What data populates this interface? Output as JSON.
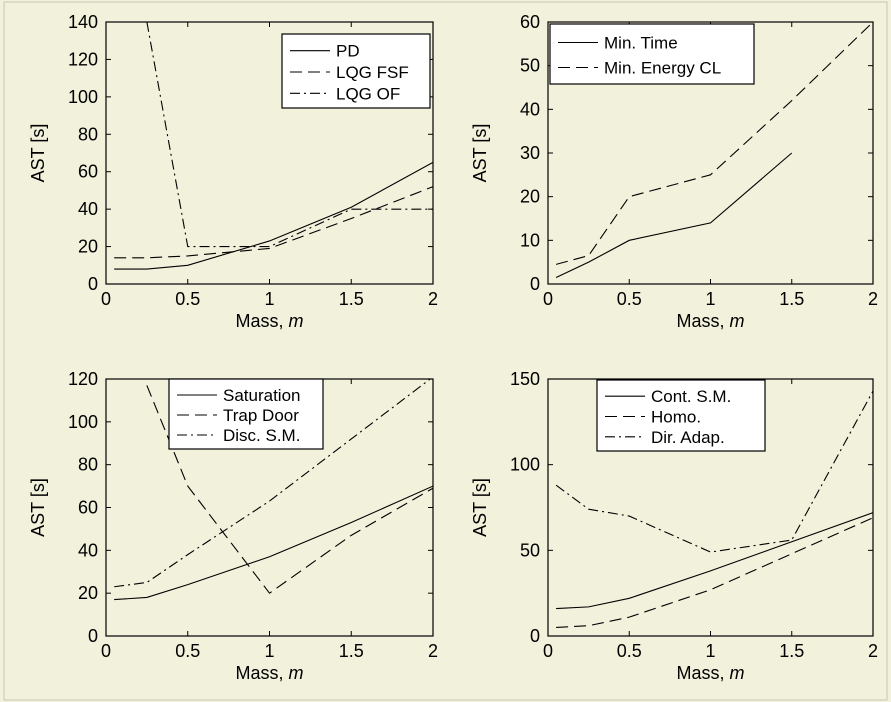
{
  "colors": {
    "background": "#f2f1dc",
    "plot_area": "#ffffff",
    "ink": "#000000"
  },
  "chart_data": [
    {
      "type": "line",
      "xlabel": "Mass,",
      "xlabel_var": "m",
      "ylabel": "AST [s]",
      "xlim": [
        0,
        2
      ],
      "ylim": [
        0,
        140
      ],
      "xticks": [
        0,
        0.5,
        1,
        1.5,
        2
      ],
      "yticks": [
        0,
        20,
        40,
        60,
        80,
        100,
        120,
        140
      ],
      "grid": false,
      "legend_position": "top-right",
      "series": [
        {
          "name": "PD",
          "dash": "solid",
          "x": [
            0.05,
            0.25,
            0.5,
            1,
            1.5,
            2
          ],
          "y": [
            8,
            8,
            10,
            23,
            41,
            65
          ]
        },
        {
          "name": "LQG FSF",
          "dash": "dashed",
          "x": [
            0.05,
            0.25,
            0.5,
            1,
            1.5,
            2
          ],
          "y": [
            14,
            14,
            15,
            19,
            35,
            52
          ]
        },
        {
          "name": "LQG OF",
          "dash": "dashdot",
          "x": [
            0.25,
            0.5,
            1,
            1.5,
            2
          ],
          "y": [
            140,
            20,
            20,
            40,
            40
          ]
        }
      ]
    },
    {
      "type": "line",
      "xlabel": "Mass,",
      "xlabel_var": "m",
      "ylabel": "AST [s]",
      "xlim": [
        0,
        2
      ],
      "ylim": [
        0,
        60
      ],
      "xticks": [
        0,
        0.5,
        1,
        1.5,
        2
      ],
      "yticks": [
        0,
        10,
        20,
        30,
        40,
        50,
        60
      ],
      "grid": false,
      "legend_position": "top-left",
      "series": [
        {
          "name": "Min. Time",
          "dash": "solid",
          "x": [
            0.05,
            0.25,
            0.5,
            1,
            1.5
          ],
          "y": [
            1.5,
            5,
            10,
            14,
            30
          ]
        },
        {
          "name": "Min. Energy CL",
          "dash": "dashed",
          "x": [
            0.05,
            0.25,
            0.5,
            1,
            1.5,
            2
          ],
          "y": [
            4.5,
            6.5,
            20,
            25,
            42,
            60
          ]
        }
      ]
    },
    {
      "type": "line",
      "xlabel": "Mass,",
      "xlabel_var": "m",
      "ylabel": "AST [s]",
      "xlim": [
        0,
        2
      ],
      "ylim": [
        0,
        120
      ],
      "xticks": [
        0,
        0.5,
        1,
        1.5,
        2
      ],
      "yticks": [
        0,
        20,
        40,
        60,
        80,
        100,
        120
      ],
      "grid": false,
      "legend_position": "top-left",
      "series": [
        {
          "name": "Saturation",
          "dash": "solid",
          "x": [
            0.05,
            0.25,
            0.5,
            1,
            1.5,
            2
          ],
          "y": [
            17,
            18,
            24,
            37,
            53,
            70
          ]
        },
        {
          "name": "Trap Door",
          "dash": "dashed",
          "x": [
            0.25,
            0.5,
            1,
            1.5,
            2
          ],
          "y": [
            117,
            70,
            20,
            47,
            69
          ]
        },
        {
          "name": "Disc. S.M.",
          "dash": "dashdot",
          "x": [
            0.05,
            0.25,
            0.5,
            1,
            1.5,
            2
          ],
          "y": [
            23,
            25,
            38,
            63,
            92,
            121
          ]
        }
      ]
    },
    {
      "type": "line",
      "xlabel": "Mass,",
      "xlabel_var": "m",
      "ylabel": "AST [s]",
      "xlim": [
        0,
        2
      ],
      "ylim": [
        0,
        150
      ],
      "xticks": [
        0,
        0.5,
        1,
        1.5,
        2
      ],
      "yticks": [
        0,
        50,
        100,
        150
      ],
      "grid": false,
      "legend_position": "top-left",
      "series": [
        {
          "name": "Cont. S.M.",
          "dash": "solid",
          "x": [
            0.05,
            0.25,
            0.5,
            1,
            1.5,
            2
          ],
          "y": [
            16,
            17,
            22,
            38,
            55,
            72
          ]
        },
        {
          "name": "Homo.",
          "dash": "dashed",
          "x": [
            0.05,
            0.25,
            0.5,
            1,
            1.5,
            2
          ],
          "y": [
            5,
            6,
            11,
            27,
            48,
            69
          ]
        },
        {
          "name": "Dir. Adap.",
          "dash": "dashdot",
          "x": [
            0.05,
            0.25,
            0.5,
            1,
            1.5,
            2
          ],
          "y": [
            88,
            74,
            70,
            49,
            56,
            143
          ]
        }
      ]
    }
  ]
}
